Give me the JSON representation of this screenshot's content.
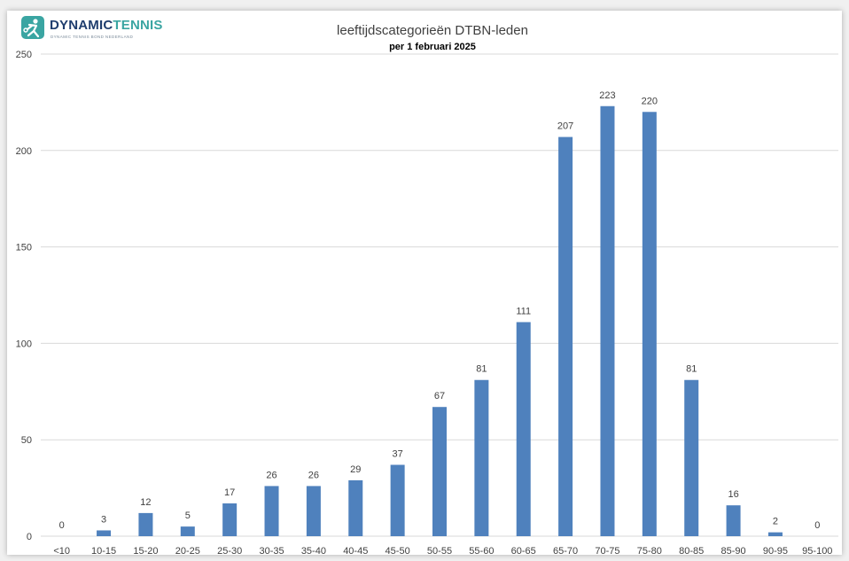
{
  "logo": {
    "word1": "DYNAMIC",
    "word2": "TENNIS",
    "tagline": "DYNAMIC TENNIS BOND NEDERLAND",
    "icon": "tennis-player-icon"
  },
  "colors": {
    "bar": "#4f81bd",
    "gridline": "#d9d9d9",
    "axis_text": "#404040",
    "title_text": "#404040",
    "brand_dark": "#1f3d6e",
    "brand_teal": "#3aa5a2"
  },
  "chart_data": {
    "type": "bar",
    "title": "leeftijdscategorieën DTBN-leden",
    "subtitle": "per 1 februari 2025",
    "xlabel": "",
    "ylabel": "",
    "categories": [
      "<10",
      "10-15",
      "15-20",
      "20-25",
      "25-30",
      "30-35",
      "35-40",
      "40-45",
      "45-50",
      "50-55",
      "55-60",
      "60-65",
      "65-70",
      "70-75",
      "75-80",
      "80-85",
      "85-90",
      "90-95",
      "95-100"
    ],
    "values": [
      0,
      3,
      12,
      5,
      17,
      26,
      26,
      29,
      37,
      67,
      81,
      111,
      207,
      223,
      220,
      81,
      16,
      2,
      0
    ],
    "ylim": [
      0,
      250
    ],
    "yticks": [
      0,
      50,
      100,
      150,
      200,
      250
    ],
    "grid": true,
    "data_labels": true,
    "legend": "none"
  }
}
